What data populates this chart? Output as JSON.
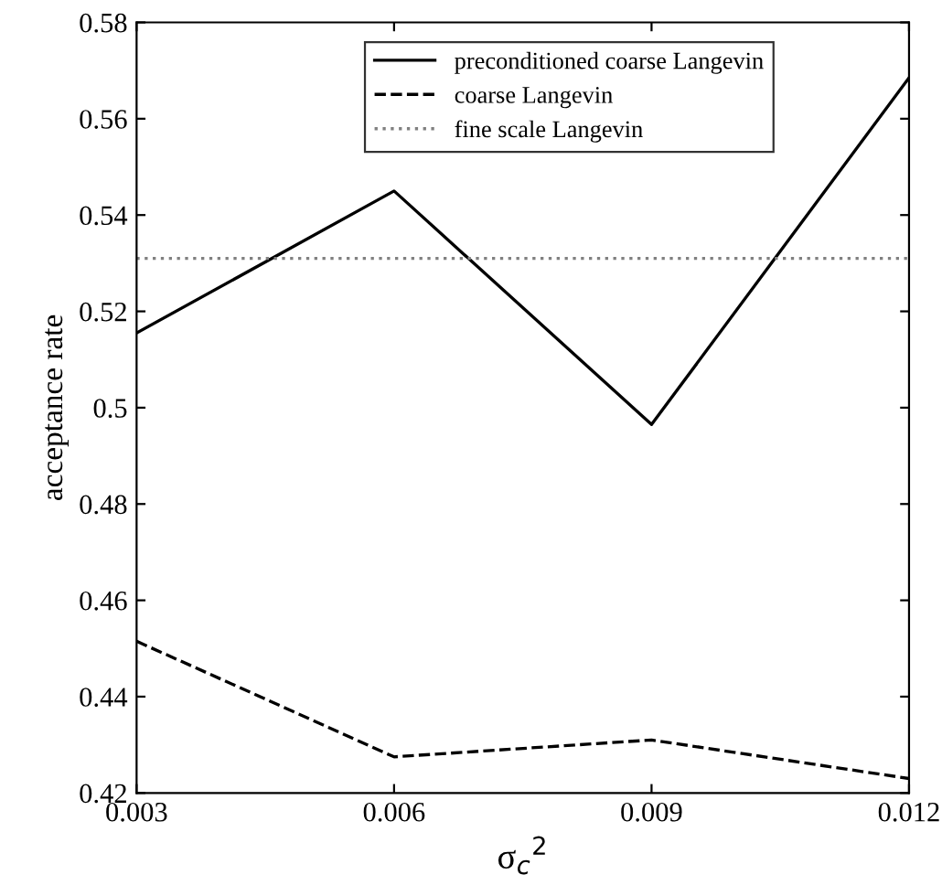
{
  "chart_data": {
    "type": "line",
    "xlabel": "σ$_{c}$$^{2}$",
    "ylabel": "acceptance rate",
    "x": [
      0.003,
      0.006,
      0.009,
      0.012
    ],
    "series": [
      {
        "name": "preconditioned coarse Langevin",
        "color": "#000000",
        "line_style": "solid",
        "values": [
          0.5155,
          0.545,
          0.4965,
          0.5685
        ]
      },
      {
        "name": "coarse Langevin",
        "color": "#000000",
        "line_style": "dashed",
        "values": [
          0.4515,
          0.4275,
          0.431,
          0.423
        ]
      },
      {
        "name": "fine scale Langevin",
        "color": "#808080",
        "line_style": "dotted",
        "values": [
          0.531,
          0.531,
          0.531,
          0.531
        ]
      }
    ],
    "xlim": [
      0.003,
      0.012
    ],
    "xticks": [
      0.003,
      0.006,
      0.009,
      0.012
    ],
    "ylim": [
      0.42,
      0.58
    ],
    "yticks": [
      0.42,
      0.44,
      0.46,
      0.48,
      0.5,
      0.52,
      0.54,
      0.56,
      0.58
    ],
    "grid": false,
    "legend": "top",
    "marker": "none"
  }
}
